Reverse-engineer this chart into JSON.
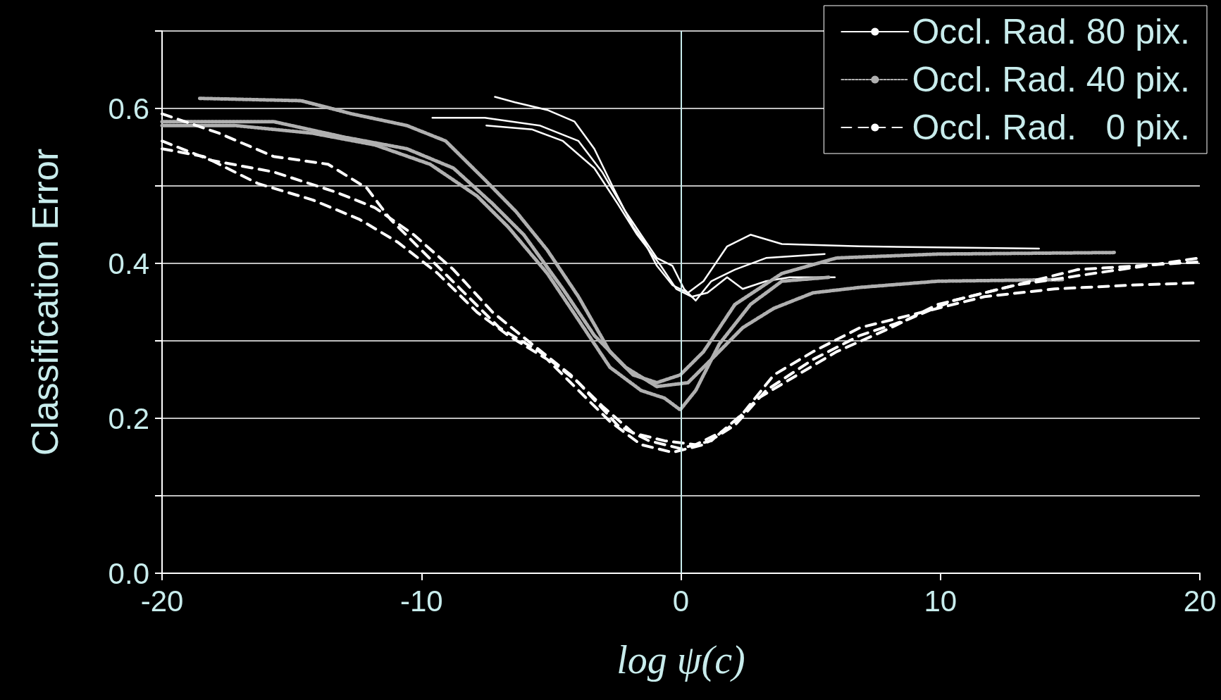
{
  "chart_data": {
    "type": "line",
    "xlabel": "log ψ(c)",
    "ylabel": "Classification Error",
    "xlim": [
      -20,
      20
    ],
    "xticks": [
      -20,
      -10,
      0,
      10,
      20
    ],
    "ylim": [
      0,
      0.7
    ],
    "yticks": [
      {
        "value": 0,
        "label": "0.0"
      },
      {
        "value": 0.1,
        "label": null
      },
      0.2,
      {
        "value": 0.3,
        "label": null
      },
      0.4,
      {
        "value": 0.5,
        "label": null
      },
      0.6,
      {
        "value": 0.7,
        "label": null
      }
    ],
    "grid": "y",
    "legend": "top right",
    "marker": "none",
    "ref_lines": [
      {
        "axis": "x",
        "value": 0,
        "color": "#c8ecec"
      }
    ],
    "series": [
      {
        "name": "Occl. Rad. 80 pix.",
        "color": "#ffffff",
        "line_style": "solid",
        "x": [
          -7.17,
          -6.4,
          -5.15,
          -4.1,
          -3.34,
          -2.6,
          -1.84,
          -1.4,
          -0.93,
          -0.33,
          0.27,
          0.87,
          1.78,
          2.68,
          3.89,
          6.9,
          13.8
        ],
        "values": [
          0.615,
          0.608,
          0.598,
          0.583,
          0.548,
          0.497,
          0.447,
          0.427,
          0.397,
          0.372,
          0.362,
          0.377,
          0.422,
          0.437,
          0.425,
          0.422,
          0.419
        ]
      },
      {
        "color": "#ffffff",
        "line_style": "solid",
        "x": [
          -9.58,
          -7.56,
          -5.45,
          -3.95,
          -3.04,
          -2.14,
          -1.54,
          -0.93,
          -0.33,
          0.12,
          0.57,
          1.17,
          2.08,
          3.28,
          5.54
        ],
        "values": [
          0.588,
          0.588,
          0.578,
          0.558,
          0.518,
          0.467,
          0.437,
          0.407,
          0.397,
          0.367,
          0.352,
          0.377,
          0.392,
          0.407,
          0.412
        ]
      },
      {
        "color": "#ffffff",
        "line_style": "solid",
        "x": [
          -7.5,
          -5.75,
          -4.55,
          -3.34,
          -2.44,
          -1.69,
          -1.23,
          -0.78,
          -0.18,
          0.42,
          1.02,
          1.78,
          2.38,
          3.28,
          4.19,
          5.93
        ],
        "values": [
          0.578,
          0.573,
          0.558,
          0.523,
          0.477,
          0.437,
          0.417,
          0.397,
          0.367,
          0.357,
          0.362,
          0.382,
          0.367,
          0.377,
          0.382,
          0.382
        ]
      },
      {
        "name": "Occl. Rad. 40 pix.",
        "color": "#b0b0b0",
        "line_style": "dotted",
        "x": [
          -18.55,
          -14.64,
          -12.68,
          -10.57,
          -9.07,
          -7.56,
          -6.36,
          -5.15,
          -3.95,
          -2.74,
          -1.84,
          -0.93,
          -0.03,
          0.87,
          2.08,
          3.89,
          6.0,
          9.9,
          16.7
        ],
        "values": [
          0.613,
          0.61,
          0.593,
          0.578,
          0.558,
          0.508,
          0.467,
          0.417,
          0.357,
          0.286,
          0.256,
          0.246,
          0.256,
          0.286,
          0.347,
          0.387,
          0.407,
          0.412,
          0.414
        ]
      },
      {
        "color": "#b0b0b0",
        "line_style": "dotted",
        "x": [
          -20,
          -17.2,
          -14.2,
          -11.8,
          -9.67,
          -7.86,
          -6.66,
          -5.15,
          -3.95,
          -2.74,
          -1.54,
          -0.63,
          -0.03,
          0.57,
          1.48,
          2.68,
          3.89,
          5.69
        ],
        "values": [
          0.578,
          0.578,
          0.568,
          0.553,
          0.528,
          0.487,
          0.447,
          0.387,
          0.327,
          0.266,
          0.236,
          0.226,
          0.211,
          0.236,
          0.296,
          0.347,
          0.377,
          0.382
        ]
      },
      {
        "color": "#b0b0b0",
        "line_style": "dotted",
        "x": [
          -20,
          -15.7,
          -12.98,
          -10.57,
          -8.77,
          -7.26,
          -6.06,
          -4.55,
          -3.34,
          -2.14,
          -0.93,
          0.27,
          1.17,
          2.38,
          3.58,
          5.09,
          6.9,
          9.9,
          14.7
        ],
        "values": [
          0.583,
          0.583,
          0.563,
          0.548,
          0.523,
          0.477,
          0.437,
          0.367,
          0.307,
          0.266,
          0.241,
          0.246,
          0.276,
          0.317,
          0.342,
          0.362,
          0.369,
          0.377,
          0.379
        ]
      },
      {
        "name": "Occl. Rad.   0 pix.",
        "color": "#ffffff",
        "line_style": "dashed",
        "x": [
          -20,
          -18.4,
          -16.3,
          -14.2,
          -12.4,
          -10.9,
          -9.37,
          -7.86,
          -6.66,
          -5.15,
          -3.95,
          -2.74,
          -1.54,
          -0.33,
          0.87,
          2.08,
          3.28,
          5.09,
          6.9,
          8.7,
          10.5,
          12.9,
          15.9,
          20
        ],
        "values": [
          0.548,
          0.538,
          0.503,
          0.482,
          0.457,
          0.427,
          0.387,
          0.337,
          0.307,
          0.276,
          0.236,
          0.196,
          0.166,
          0.156,
          0.166,
          0.191,
          0.236,
          0.276,
          0.307,
          0.327,
          0.352,
          0.372,
          0.387,
          0.407
        ]
      },
      {
        "color": "#ffffff",
        "line_style": "dashed",
        "x": [
          -20,
          -18.1,
          -15.7,
          -13.3,
          -11.8,
          -10.3,
          -8.77,
          -7.26,
          -5.75,
          -4.25,
          -3.04,
          -1.84,
          -0.63,
          0.57,
          1.78,
          2.98,
          4.49,
          6.0,
          8.1,
          9.9,
          12.3,
          15.3,
          20
        ],
        "values": [
          0.558,
          0.533,
          0.518,
          0.492,
          0.472,
          0.437,
          0.392,
          0.337,
          0.296,
          0.256,
          0.216,
          0.181,
          0.171,
          0.166,
          0.186,
          0.226,
          0.256,
          0.286,
          0.317,
          0.347,
          0.367,
          0.392,
          0.402
        ]
      },
      {
        "color": "#ffffff",
        "line_style": "dashed",
        "x": [
          -20,
          -17.8,
          -15.7,
          -13.6,
          -12.1,
          -11.2,
          -10.0,
          -8.5,
          -7.0,
          -5.45,
          -3.95,
          -2.44,
          -1.23,
          -0.03,
          1.17,
          2.38,
          3.58,
          5.09,
          6.9,
          9.3,
          11.7,
          14.4,
          17.4,
          20
        ],
        "values": [
          0.593,
          0.568,
          0.538,
          0.528,
          0.497,
          0.457,
          0.417,
          0.367,
          0.317,
          0.286,
          0.246,
          0.191,
          0.171,
          0.161,
          0.171,
          0.206,
          0.256,
          0.286,
          0.317,
          0.337,
          0.357,
          0.367,
          0.372,
          0.375
        ]
      }
    ]
  }
}
